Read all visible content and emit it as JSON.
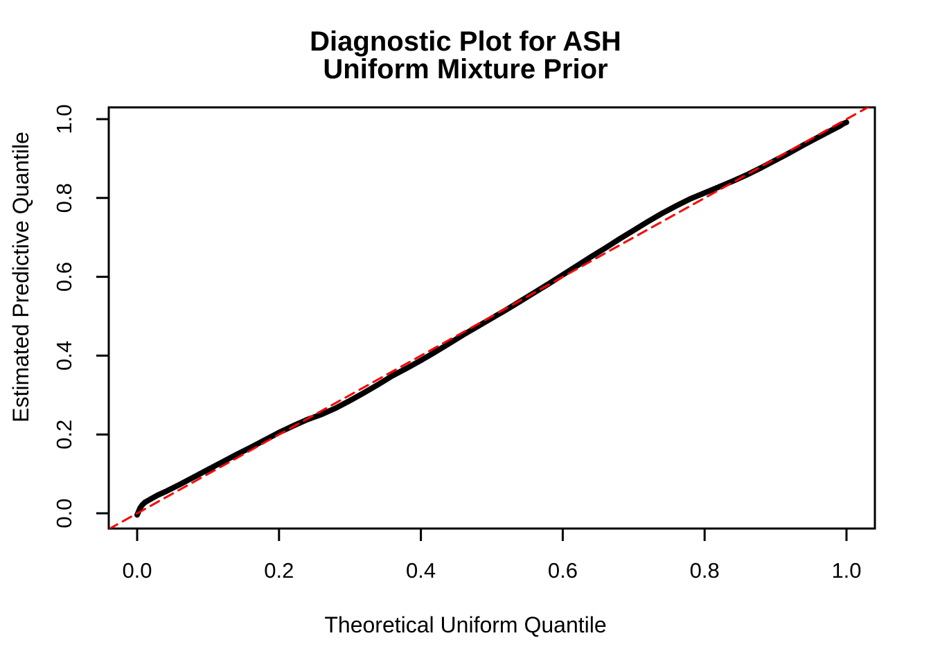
{
  "chart_data": {
    "type": "line",
    "title_lines": [
      "Diagnostic Plot for ASH",
      "Uniform Mixture Prior"
    ],
    "xlabel": "Theoretical Uniform Quantile",
    "ylabel": "Estimated Predictive Quantile",
    "xlim": [
      -0.04,
      1.04
    ],
    "ylim": [
      -0.04,
      1.04
    ],
    "x_ticks": [
      0.0,
      0.2,
      0.4,
      0.6,
      0.8,
      1.0
    ],
    "y_ticks": [
      0.0,
      0.2,
      0.4,
      0.6,
      0.8,
      1.0
    ],
    "x_tick_labels": [
      "0.0",
      "0.2",
      "0.4",
      "0.6",
      "0.8",
      "1.0"
    ],
    "y_tick_labels": [
      "0.0",
      "0.2",
      "0.4",
      "0.6",
      "0.8",
      "1.0"
    ],
    "grid": false,
    "legend": "none",
    "colors": {
      "curve": "#000000",
      "reference": "#FF0000",
      "frame": "#000000"
    },
    "series": [
      {
        "name": "estimated-predictive-quantiles",
        "style": "solid",
        "color": "#000000",
        "linewidth": 8,
        "points": [
          [
            0.0,
            -0.004
          ],
          [
            0.002,
            0.004
          ],
          [
            0.004,
            0.013
          ],
          [
            0.007,
            0.021
          ],
          [
            0.011,
            0.028
          ],
          [
            0.016,
            0.033
          ],
          [
            0.022,
            0.039
          ],
          [
            0.03,
            0.047
          ],
          [
            0.04,
            0.055
          ],
          [
            0.05,
            0.064
          ],
          [
            0.06,
            0.073
          ],
          [
            0.08,
            0.092
          ],
          [
            0.1,
            0.111
          ],
          [
            0.12,
            0.13
          ],
          [
            0.14,
            0.149
          ],
          [
            0.16,
            0.167
          ],
          [
            0.18,
            0.186
          ],
          [
            0.2,
            0.205
          ],
          [
            0.22,
            0.222
          ],
          [
            0.24,
            0.238
          ],
          [
            0.26,
            0.251
          ],
          [
            0.28,
            0.267
          ],
          [
            0.3,
            0.286
          ],
          [
            0.32,
            0.306
          ],
          [
            0.34,
            0.327
          ],
          [
            0.36,
            0.349
          ],
          [
            0.38,
            0.368
          ],
          [
            0.4,
            0.388
          ],
          [
            0.42,
            0.409
          ],
          [
            0.44,
            0.431
          ],
          [
            0.46,
            0.453
          ],
          [
            0.48,
            0.474
          ],
          [
            0.5,
            0.495
          ],
          [
            0.52,
            0.516
          ],
          [
            0.54,
            0.538
          ],
          [
            0.56,
            0.56
          ],
          [
            0.58,
            0.582
          ],
          [
            0.6,
            0.605
          ],
          [
            0.62,
            0.628
          ],
          [
            0.64,
            0.651
          ],
          [
            0.66,
            0.673
          ],
          [
            0.68,
            0.696
          ],
          [
            0.7,
            0.718
          ],
          [
            0.72,
            0.74
          ],
          [
            0.74,
            0.761
          ],
          [
            0.76,
            0.78
          ],
          [
            0.78,
            0.798
          ],
          [
            0.8,
            0.813
          ],
          [
            0.82,
            0.828
          ],
          [
            0.84,
            0.843
          ],
          [
            0.86,
            0.859
          ],
          [
            0.88,
            0.877
          ],
          [
            0.9,
            0.896
          ],
          [
            0.92,
            0.915
          ],
          [
            0.94,
            0.935
          ],
          [
            0.96,
            0.954
          ],
          [
            0.98,
            0.973
          ],
          [
            0.99,
            0.982
          ],
          [
            0.996,
            0.989
          ],
          [
            1.0,
            0.992
          ]
        ]
      },
      {
        "name": "identity-reference-line",
        "style": "dashed",
        "color": "#FF0000",
        "linewidth": 3,
        "points": [
          [
            -0.04,
            -0.04
          ],
          [
            1.04,
            1.04
          ]
        ]
      }
    ]
  }
}
